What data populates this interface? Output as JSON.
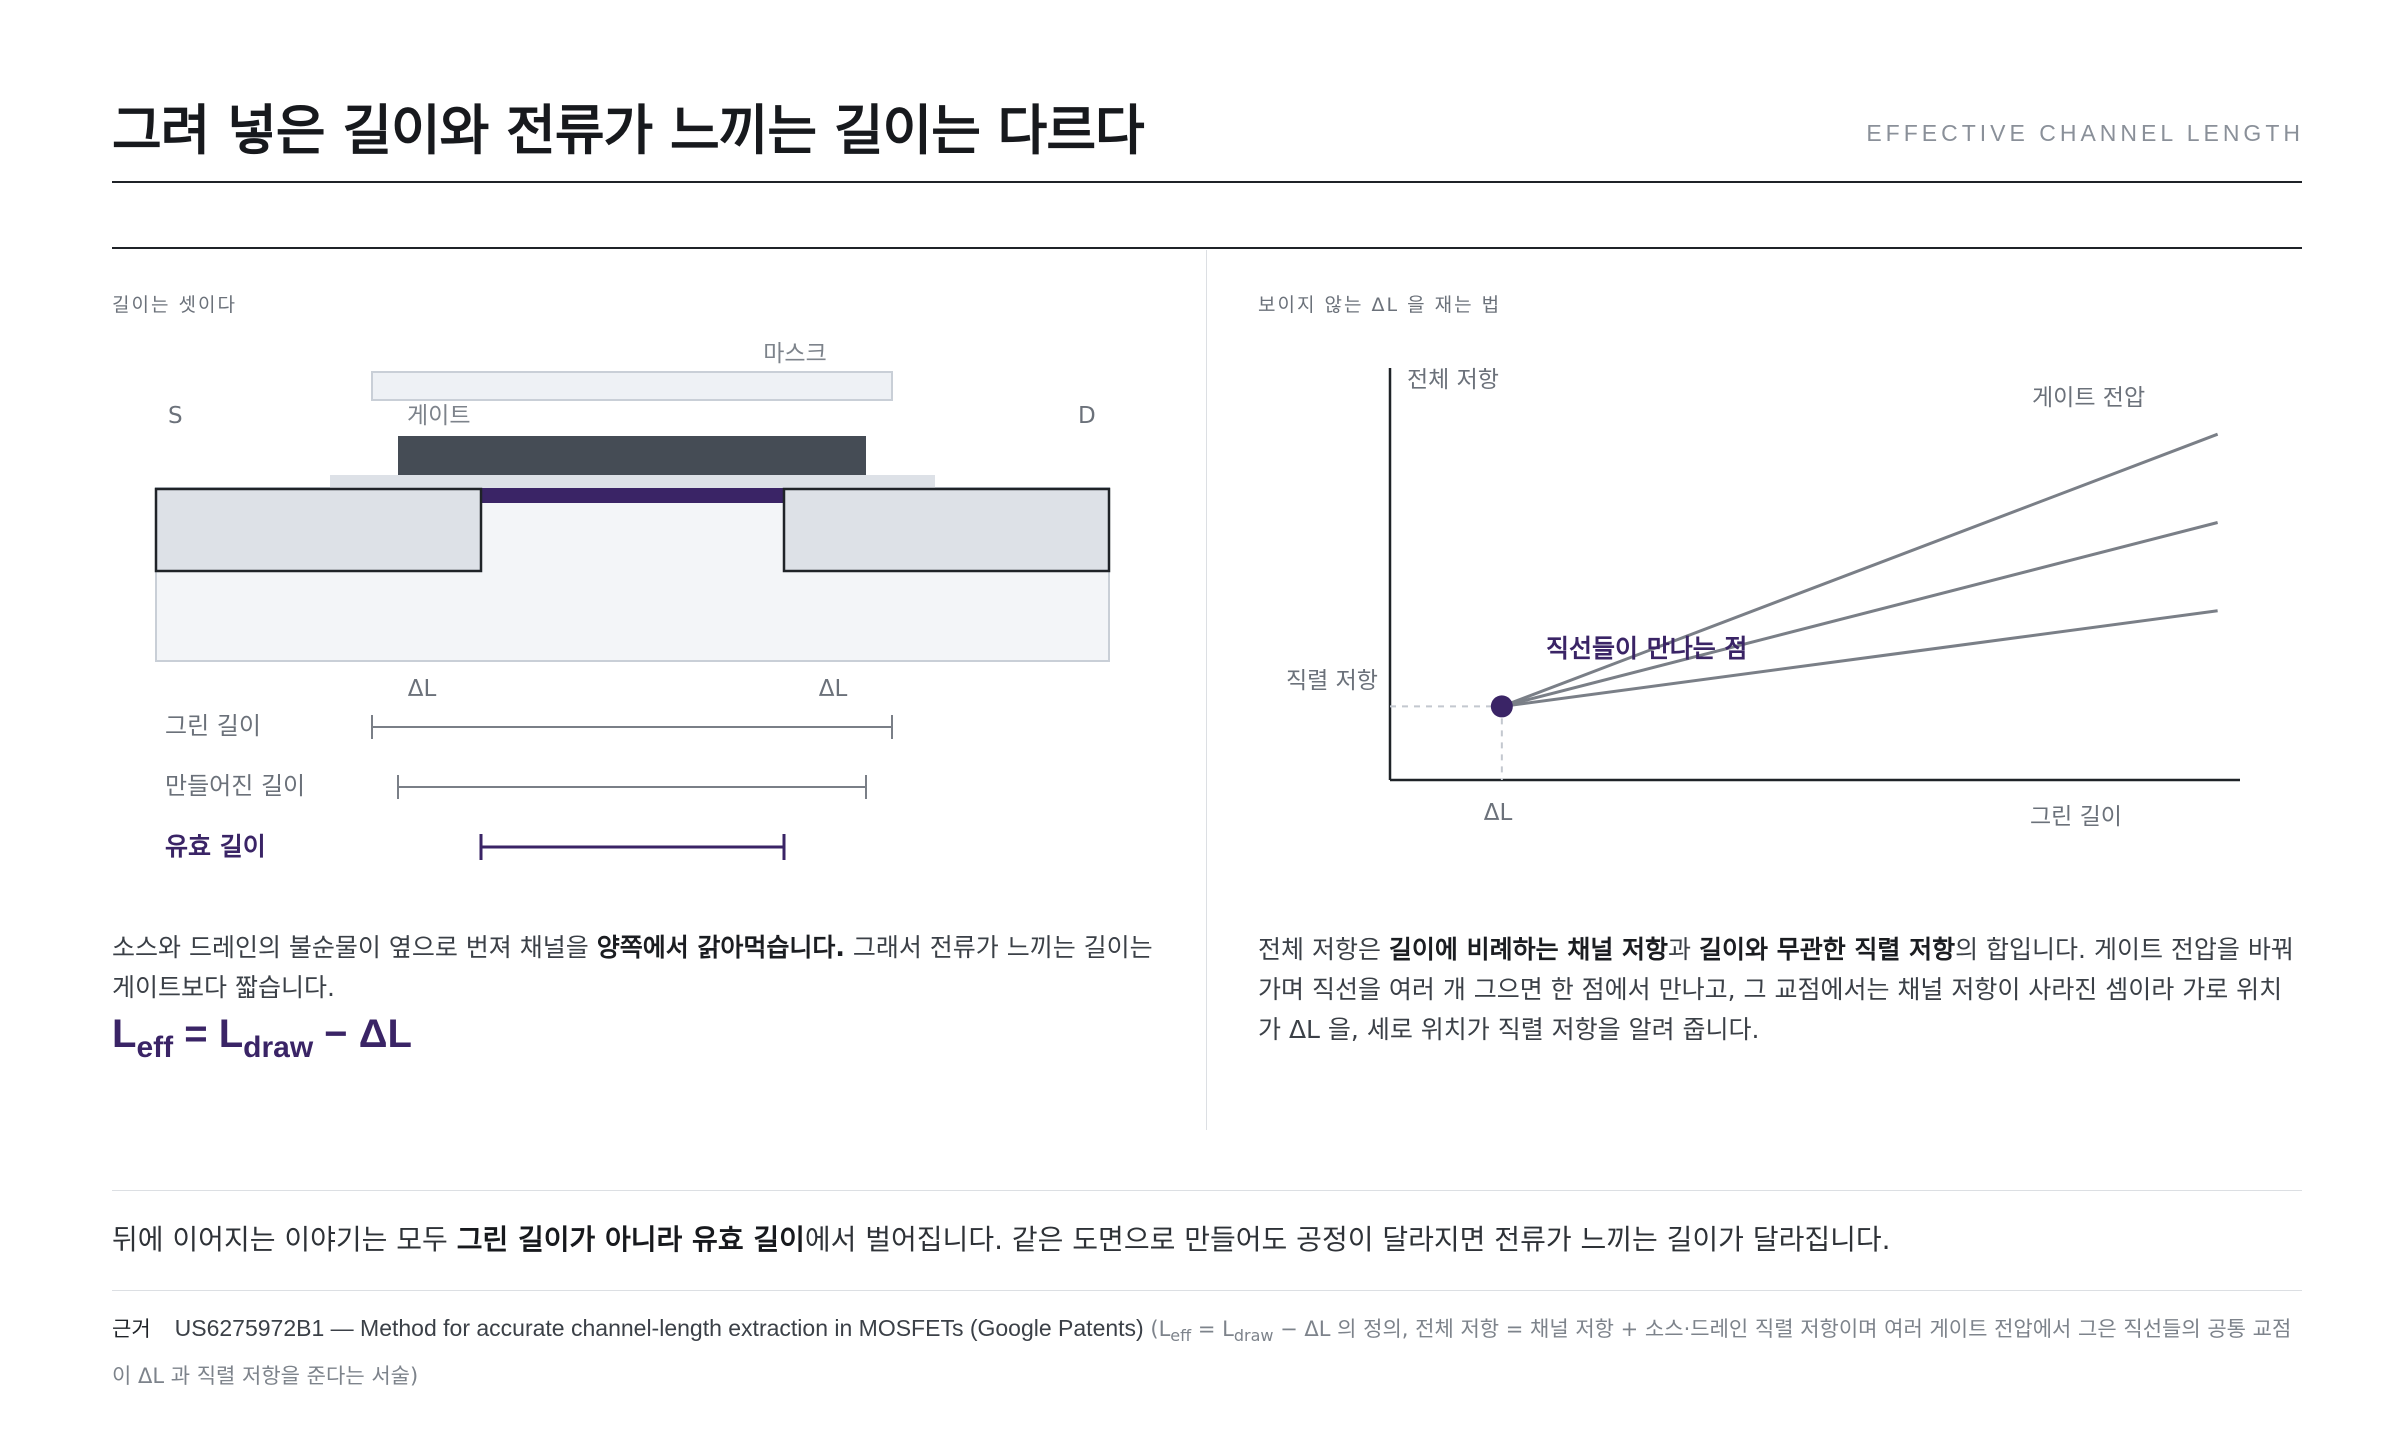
{
  "header": {
    "title": "그려 넣은 길이와 전류가 느끼는 길이는 다르다",
    "eyebrow": "EFFECTIVE CHANNEL LENGTH"
  },
  "left_panel": {
    "section_label": "길이는 셋이다",
    "diagram": {
      "mask_label": "마스크",
      "gate_label": "게이트",
      "source_label": "S",
      "drain_label": "D",
      "delta_l_left": "ΔL",
      "delta_l_right": "ΔL",
      "lengths": [
        {
          "label": "그린 길이",
          "highlight": false
        },
        {
          "label": "만들어진 길이",
          "highlight": false
        },
        {
          "label": "유효 길이",
          "highlight": true
        }
      ]
    },
    "paragraph": {
      "pre": "소스와 드레인의 불순물이 옆으로 번져 채널을 ",
      "bold": "양쪽에서 갉아먹습니다.",
      "post": " 그래서 전류가 느끼는 길이는 게이트보다 짧습니다."
    },
    "formula": {
      "l1": "L",
      "sub1": "eff",
      "eq": " = ",
      "l2": "L",
      "sub2": "draw",
      "minus": " − ΔL"
    }
  },
  "right_panel": {
    "section_label": "보이지 않는 ΔL 을 재는 법",
    "paragraph": {
      "p1": "전체 저항은 ",
      "b1": "길이에 비례하는 채널 저항",
      "p2": "과 ",
      "b2": "길이와 무관한 직렬 저항",
      "p3": "의 합입니다. 게이트 전압을 바꿔 가며 직선을 여러 개 그으면 한 점에서 만나고, 그 교점에서는 채널 저항이 사라진 셈이라 가로 위치가 ΔL 을, 세로 위치가 직렬 저항을 알려 줍니다."
    }
  },
  "chart_data": {
    "type": "line",
    "ylabel": "전체 저항",
    "xlabel": "그린 길이",
    "series_label": "게이트 전압",
    "intersection_label": "직선들이 만나는 점",
    "intersection_x_label": "ΔL",
    "intersection_y_label": "직렬 저항",
    "intersection": {
      "x": 1,
      "y": 1
    },
    "series": [
      {
        "x": [
          1,
          7.4
        ],
        "y": [
          1,
          4.7
        ]
      },
      {
        "x": [
          1,
          7.4
        ],
        "y": [
          1,
          3.5
        ]
      },
      {
        "x": [
          1,
          7.4
        ],
        "y": [
          1,
          2.3
        ]
      }
    ],
    "xlim": [
      0,
      7.6
    ],
    "ylim": [
      0,
      5.6
    ],
    "line_color": "#7a7f87",
    "point_color": "#3a2466"
  },
  "footer": {
    "closing": {
      "pre": "뒤에 이어지는 이야기는 모두 ",
      "bold": "그린 길이가 아니라 유효 길이",
      "post": "에서 벌어집니다. 같은 도면으로 만들어도 공정이 달라지면 전류가 느끼는 길이가 달라집니다."
    },
    "citation": {
      "key": "근거",
      "title": "US6275972B1 — Method for accurate channel-length extraction in MOSFETs (Google Patents)",
      "note_pre": " (L",
      "note_sub1": "eff",
      "note_mid": " = L",
      "note_sub2": "draw",
      "note_post": " − ΔL 의 정의, 전체 저항 = 채널 저항 + 소스·드레인 직렬 저항이며 여러 게이트 전압에서 그은 직선들의 공통 교점이 ΔL 과 직렬 저항을 준다는 서술)"
    }
  },
  "colors": {
    "accent": "#3a2466",
    "gate": "#454c55",
    "region_fill": "#dde1e7",
    "substrate": "#f3f5f8"
  }
}
